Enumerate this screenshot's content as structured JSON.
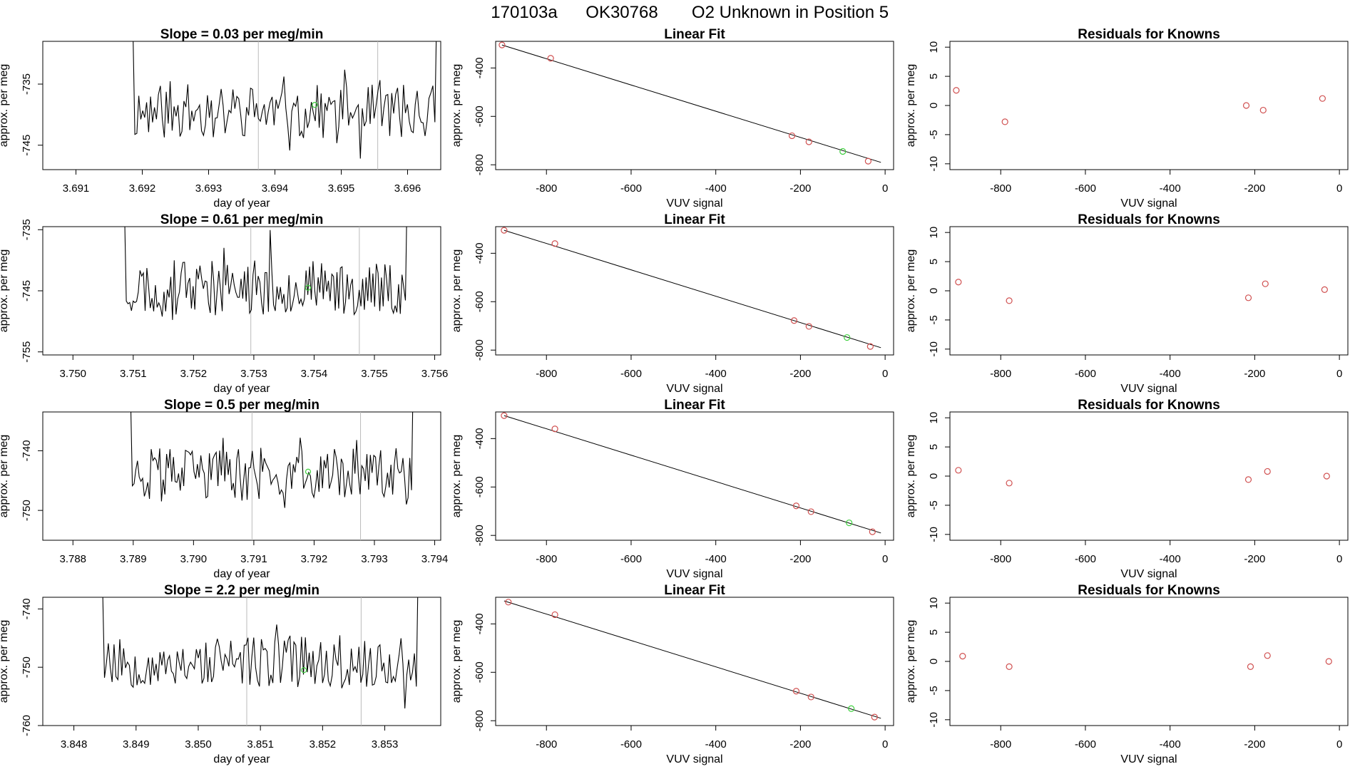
{
  "main_title": {
    "run": "170103a",
    "tank": "OK30768",
    "desc": "O2 Unknown in Position  5"
  },
  "colors": {
    "trace": "#000000",
    "known": "#d05050",
    "unknown": "#40d040",
    "vline": "#bbbbbb"
  },
  "chart_data": [
    {
      "row": 0,
      "col": 0,
      "type": "line",
      "title": "Slope =  0.03  per meg/min",
      "xlabel": "day of year",
      "ylabel": "approx. per meg",
      "xlim": [
        3.6905,
        3.6965
      ],
      "ylim": [
        -749,
        -728
      ],
      "xticks": [
        "3.691",
        "3.692",
        "3.693",
        "3.694",
        "3.695",
        "3.696"
      ],
      "yticks": [
        "-735",
        "-745"
      ],
      "vlines": [
        3.69375,
        3.69555
      ],
      "trace": {
        "x_start": 3.6918,
        "x_end": 3.6965,
        "n": 160,
        "base": -739.5,
        "amp": 4.5,
        "seed": 11
      },
      "unknown_point": {
        "x": 3.6946,
        "y": -738.4
      }
    },
    {
      "row": 0,
      "col": 1,
      "type": "scatter",
      "title": "Linear Fit",
      "xlabel": "VUV signal",
      "ylabel": "approx. per meg",
      "xlim": [
        -920,
        20
      ],
      "ylim": [
        -820,
        -290
      ],
      "xticks": [
        "-800",
        "-600",
        "-400",
        "-200",
        "0"
      ],
      "yticks": [
        "-400",
        "-600",
        "-800"
      ],
      "fit_line": {
        "x": [
          -905,
          -10
        ],
        "y": [
          -305,
          -790
        ]
      },
      "knowns": {
        "x": [
          -905,
          -790,
          -220,
          -180,
          -40
        ],
        "y": [
          -305,
          -360,
          -680,
          -705,
          -785
        ]
      },
      "unknown": {
        "x": [
          -100
        ],
        "y": [
          -745
        ]
      }
    },
    {
      "row": 0,
      "col": 2,
      "type": "scatter",
      "title": "Residuals for Knowns",
      "xlabel": "VUV signal",
      "ylabel": "approx. per meg",
      "xlim": [
        -920,
        20
      ],
      "ylim": [
        -11,
        11
      ],
      "xticks": [
        "-800",
        "-600",
        "-400",
        "-200",
        "0"
      ],
      "yticks": [
        "10",
        "5",
        "0",
        "-5",
        "-10"
      ],
      "knowns": {
        "x": [
          -905,
          -790,
          -220,
          -180,
          -40
        ],
        "y": [
          2.6,
          -2.8,
          0,
          -0.8,
          1.2
        ]
      }
    },
    {
      "row": 1,
      "col": 0,
      "type": "line",
      "title": "Slope =  0.61  per meg/min",
      "xlabel": "day of year",
      "ylabel": "approx. per meg",
      "xlim": [
        3.7495,
        3.7561
      ],
      "ylim": [
        -755.5,
        -734.5
      ],
      "xticks": [
        "3.750",
        "3.751",
        "3.752",
        "3.753",
        "3.754",
        "3.755",
        "3.756"
      ],
      "yticks": [
        "-735",
        "-745",
        "-755"
      ],
      "vlines": [
        3.75295,
        3.75475
      ],
      "trace": {
        "x_start": 3.7508,
        "x_end": 3.7556,
        "n": 170,
        "base": -744.5,
        "amp": 4.5,
        "seed": 23
      },
      "unknown_point": {
        "x": 3.7539,
        "y": -744.5
      }
    },
    {
      "row": 1,
      "col": 1,
      "type": "scatter",
      "title": "Linear Fit",
      "xlabel": "VUV signal",
      "ylabel": "approx. per meg",
      "xlim": [
        -920,
        20
      ],
      "ylim": [
        -820,
        -290
      ],
      "xticks": [
        "-800",
        "-600",
        "-400",
        "-200",
        "0"
      ],
      "yticks": [
        "-400",
        "-600",
        "-800"
      ],
      "fit_line": {
        "x": [
          -900,
          -10
        ],
        "y": [
          -305,
          -790
        ]
      },
      "knowns": {
        "x": [
          -900,
          -780,
          -215,
          -180,
          -35
        ],
        "y": [
          -305,
          -360,
          -678,
          -702,
          -785
        ]
      },
      "unknown": {
        "x": [
          -90
        ],
        "y": [
          -748
        ]
      }
    },
    {
      "row": 1,
      "col": 2,
      "type": "scatter",
      "title": "Residuals for Knowns",
      "xlabel": "VUV signal",
      "ylabel": "approx. per meg",
      "xlim": [
        -920,
        20
      ],
      "ylim": [
        -11,
        11
      ],
      "xticks": [
        "-800",
        "-600",
        "-400",
        "-200",
        "0"
      ],
      "yticks": [
        "10",
        "5",
        "0",
        "-5",
        "-10"
      ],
      "knowns": {
        "x": [
          -900,
          -780,
          -215,
          -175,
          -35
        ],
        "y": [
          1.5,
          -1.7,
          -1.2,
          1.2,
          0.2
        ]
      }
    },
    {
      "row": 2,
      "col": 0,
      "type": "line",
      "title": "Slope =  0.5  per meg/min",
      "xlabel": "day of year",
      "ylabel": "approx. per meg",
      "xlim": [
        3.7875,
        3.7941
      ],
      "ylim": [
        -755,
        -733.5
      ],
      "xticks": [
        "3.788",
        "3.789",
        "3.790",
        "3.791",
        "3.792",
        "3.793",
        "3.794"
      ],
      "yticks": [
        "-740",
        "-750"
      ],
      "vlines": [
        3.79097,
        3.79277
      ],
      "trace": {
        "x_start": 3.7889,
        "x_end": 3.7937,
        "n": 170,
        "base": -744,
        "amp": 4.5,
        "seed": 37
      },
      "unknown_point": {
        "x": 3.7919,
        "y": -743.5
      }
    },
    {
      "row": 2,
      "col": 1,
      "type": "scatter",
      "title": "Linear Fit",
      "xlabel": "VUV signal",
      "ylabel": "approx. per meg",
      "xlim": [
        -920,
        20
      ],
      "ylim": [
        -820,
        -290
      ],
      "xticks": [
        "-800",
        "-600",
        "-400",
        "-200",
        "0"
      ],
      "yticks": [
        "-400",
        "-600",
        "-800"
      ],
      "fit_line": {
        "x": [
          -900,
          -10
        ],
        "y": [
          -305,
          -790
        ]
      },
      "knowns": {
        "x": [
          -900,
          -780,
          -210,
          -175,
          -30
        ],
        "y": [
          -305,
          -360,
          -678,
          -702,
          -785
        ]
      },
      "unknown": {
        "x": [
          -85
        ],
        "y": [
          -748
        ]
      }
    },
    {
      "row": 2,
      "col": 2,
      "type": "scatter",
      "title": "Residuals for Knowns",
      "xlabel": "VUV signal",
      "ylabel": "approx. per meg",
      "xlim": [
        -920,
        20
      ],
      "ylim": [
        -11,
        11
      ],
      "xticks": [
        "-800",
        "-600",
        "-400",
        "-200",
        "0"
      ],
      "yticks": [
        "10",
        "5",
        "0",
        "-5",
        "-10"
      ],
      "knowns": {
        "x": [
          -900,
          -780,
          -215,
          -170,
          -30
        ],
        "y": [
          1.0,
          -1.2,
          -0.6,
          0.8,
          0
        ]
      }
    },
    {
      "row": 3,
      "col": 0,
      "type": "line",
      "title": "Slope =  2.2  per meg/min",
      "xlabel": "day of year",
      "ylabel": "approx. per meg",
      "xlim": [
        3.8475,
        3.8539
      ],
      "ylim": [
        -760,
        -738
      ],
      "xticks": [
        "3.848",
        "3.849",
        "3.850",
        "3.851",
        "3.852",
        "3.853"
      ],
      "yticks": [
        "-740",
        "-750",
        "-760"
      ],
      "vlines": [
        3.85078,
        3.85262
      ],
      "trace": {
        "x_start": 3.8484,
        "x_end": 3.8536,
        "n": 170,
        "base": -749,
        "amp": 4.5,
        "seed": 53
      },
      "unknown_point": {
        "x": 3.8517,
        "y": -750.5
      }
    },
    {
      "row": 3,
      "col": 1,
      "type": "scatter",
      "title": "Linear Fit",
      "xlabel": "VUV signal",
      "ylabel": "approx. per meg",
      "xlim": [
        -920,
        20
      ],
      "ylim": [
        -820,
        -290
      ],
      "xticks": [
        "-800",
        "-600",
        "-400",
        "-200",
        "0"
      ],
      "yticks": [
        "-400",
        "-600",
        "-800"
      ],
      "fit_line": {
        "x": [
          -900,
          -10
        ],
        "y": [
          -305,
          -790
        ]
      },
      "knowns": {
        "x": [
          -890,
          -780,
          -210,
          -175,
          -25
        ],
        "y": [
          -310,
          -362,
          -678,
          -702,
          -785
        ]
      },
      "unknown": {
        "x": [
          -80
        ],
        "y": [
          -750
        ]
      }
    },
    {
      "row": 3,
      "col": 2,
      "type": "scatter",
      "title": "Residuals for Knowns",
      "xlabel": "VUV signal",
      "ylabel": "approx. per meg",
      "xlim": [
        -920,
        20
      ],
      "ylim": [
        -11,
        11
      ],
      "xticks": [
        "-800",
        "-600",
        "-400",
        "-200",
        "0"
      ],
      "yticks": [
        "10",
        "5",
        "0",
        "-5",
        "-10"
      ],
      "knowns": {
        "x": [
          -890,
          -780,
          -210,
          -170,
          -25
        ],
        "y": [
          0.9,
          -0.9,
          -0.9,
          1.0,
          0
        ]
      }
    }
  ]
}
